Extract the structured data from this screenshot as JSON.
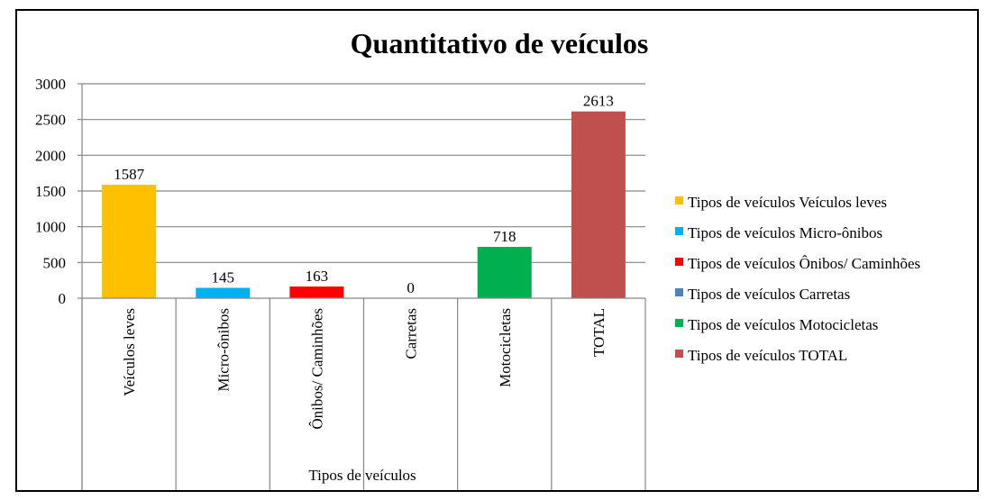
{
  "chart_data": {
    "type": "bar",
    "title": "Quantitativo de veículos",
    "xlabel": "Tipos de veículos",
    "ylabel": "",
    "ylim": [
      0,
      3000
    ],
    "yticks": [
      0,
      500,
      1000,
      1500,
      2000,
      2500,
      3000
    ],
    "grid": true,
    "legend_position": "right",
    "categories": [
      "Veículos leves",
      "Micro-ônibos",
      "Ônibos/ Caminhões",
      "Carretas",
      "Motocicletas",
      "TOTAL"
    ],
    "values": [
      1587,
      145,
      163,
      0,
      718,
      2613
    ],
    "colors": [
      "#FFC000",
      "#00B0F0",
      "#FF0000",
      "#4F81BD",
      "#00B050",
      "#C0504D"
    ],
    "legend": [
      "Tipos de veículos Veículos leves",
      "Tipos de veículos Micro-ônibos",
      "Tipos de veículos Ônibos/ Caminhões",
      "Tipos de veículos Carretas",
      "Tipos de veículos Motocicletas",
      "Tipos de veículos  TOTAL"
    ]
  }
}
